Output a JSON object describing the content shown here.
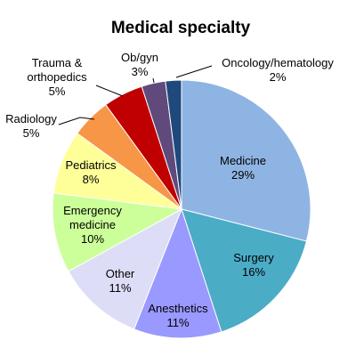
{
  "chart_data": {
    "type": "pie",
    "title": "Medical specialty",
    "slices": [
      {
        "label": "Medicine",
        "value": 29,
        "value_label": "29%",
        "color": "#8EB4E3"
      },
      {
        "label": "Surgery",
        "value": 16,
        "value_label": "16%",
        "color": "#4BACC6"
      },
      {
        "label": "Anesthetics",
        "value": 11,
        "value_label": "11%",
        "color": "#9999FF"
      },
      {
        "label": "Other",
        "value": 11,
        "value_label": "11%",
        "color": "#DDDDF7"
      },
      {
        "label": "Emergency medicine",
        "value": 10,
        "value_label": "10%",
        "color": "#CCFF99"
      },
      {
        "label": "Pediatrics",
        "value": 8,
        "value_label": "8%",
        "color": "#FFFF99"
      },
      {
        "label": "Radiology",
        "value": 5,
        "value_label": "5%",
        "color": "#F79646"
      },
      {
        "label": "Trauma & orthopedics",
        "value": 5,
        "value_label": "5%",
        "color": "#C00000"
      },
      {
        "label": "Ob/gyn",
        "value": 3,
        "value_label": "3%",
        "color": "#604A7B"
      },
      {
        "label": "Oncology/hematology",
        "value": 2,
        "value_label": "2%",
        "color": "#1F497D"
      }
    ]
  }
}
